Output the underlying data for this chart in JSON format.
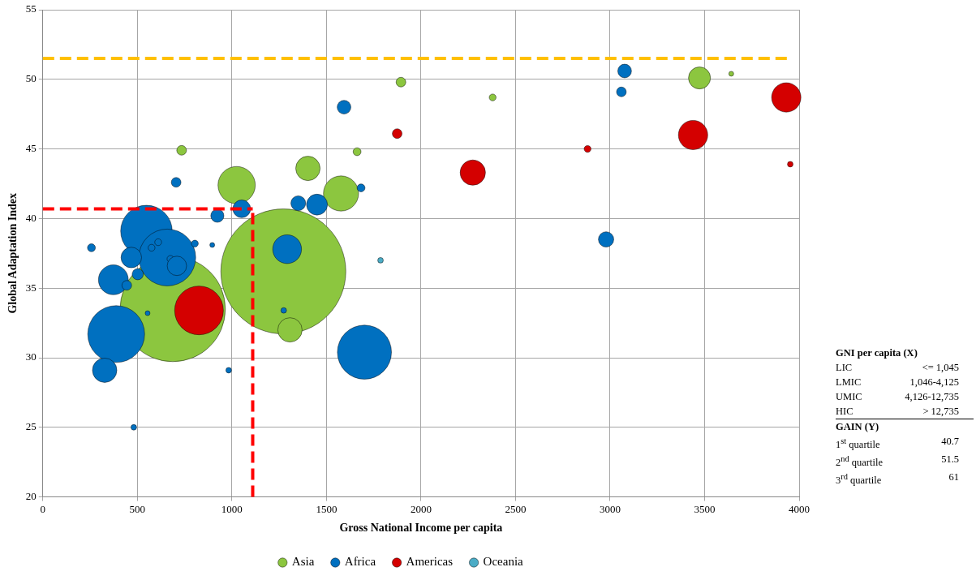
{
  "chart_data": {
    "type": "bubble",
    "xlabel": "Gross National Income per capita",
    "ylabel": "Global Adaptation Index",
    "xlim": [
      0,
      4000
    ],
    "xticks": [
      0,
      500,
      1000,
      1500,
      2000,
      2500,
      3000,
      3500,
      4000
    ],
    "ylim": [
      20,
      55
    ],
    "yticks": [
      20,
      25,
      30,
      35,
      40,
      45,
      50,
      55
    ],
    "grid": true,
    "legend": "bottom",
    "marker": "circle",
    "series": [
      {
        "name": "Asia",
        "color": "#8cc63f",
        "x": [
          1272,
          687,
          1025,
          1402,
          1577,
          1307,
          734,
          1662,
          1894,
          2379,
          3473,
          3641
        ],
        "values": [
          36.2,
          33.5,
          42.4,
          43.6,
          41.8,
          32.0,
          44.9,
          44.8,
          49.8,
          48.7,
          50.1,
          50.4
        ],
        "sizes": [
          1,
          0.71,
          0.089,
          0.038,
          0.079,
          0.038,
          0.006,
          0.004,
          0.006,
          0.003,
          0.031,
          0.0015
        ]
      },
      {
        "name": "Africa",
        "color": "#0070c0",
        "x": [
          1292,
          548,
          658,
          468,
          373,
          388,
          327,
          1701,
          705,
          923,
          1052,
          1351,
          1450,
          1683,
          257,
          502,
          444,
          575,
          610,
          675,
          709,
          804,
          896,
          554,
          1274,
          983,
          481,
          1593,
          3077,
          3060,
          2979
        ],
        "values": [
          37.8,
          39.1,
          37.2,
          37.2,
          35.6,
          31.7,
          29.1,
          30.4,
          42.6,
          40.2,
          40.7,
          41.1,
          41.0,
          42.2,
          37.9,
          36.0,
          35.2,
          37.9,
          38.3,
          37.1,
          36.6,
          38.2,
          38.1,
          33.2,
          33.4,
          29.1,
          25.0,
          48.0,
          50.6,
          49.1,
          38.5
        ],
        "sizes": [
          0.053,
          0.17,
          0.207,
          0.027,
          0.057,
          0.207,
          0.038,
          0.187,
          0.006,
          0.011,
          0.02,
          0.014,
          0.028,
          0.004,
          0.004,
          0.008,
          0.006,
          0.003,
          0.003,
          0.003,
          0.024,
          0.003,
          0.0015,
          0.0015,
          0.002,
          0.002,
          0.002,
          0.012,
          0.012,
          0.006,
          0.015
        ]
      },
      {
        "name": "Americas",
        "color": "#d40000",
        "x": [
          826,
          1874,
          2274,
          2881,
          3439,
          3932,
          3953
        ],
        "values": [
          33.4,
          46.1,
          43.3,
          45.0,
          46.0,
          48.7,
          43.9
        ],
        "sizes": [
          0.152,
          0.006,
          0.041,
          0.003,
          0.055,
          0.055,
          0.002
        ]
      },
      {
        "name": "Oceania",
        "color": "#4bacc6",
        "x": [
          1786
        ],
        "values": [
          37.0
        ],
        "sizes": [
          0.002
        ]
      }
    ],
    "ref_lines": [
      {
        "axis": "y",
        "value": 51.5,
        "color": "#ffc000",
        "line_style": "dashed"
      },
      {
        "axis": "y",
        "value": 40.7,
        "color": "#ff0000",
        "line_style": "dashed"
      },
      {
        "axis": "x",
        "value": 1110,
        "color": "#ff0000",
        "line_style": "dashed"
      }
    ],
    "annotations": [
      "GNI per capita (X)",
      "LIC",
      "<= 1,045",
      "LMIC",
      "1,046-4,125",
      "UMIC",
      "4,126-12,735",
      "HIC",
      "> 12,735",
      "GAIN (Y)",
      "1$^{st}$ quartile",
      "40.7",
      "2$^{nd}$ quartile",
      "51.5",
      "3$^{rd}$ quartile",
      "61"
    ]
  }
}
